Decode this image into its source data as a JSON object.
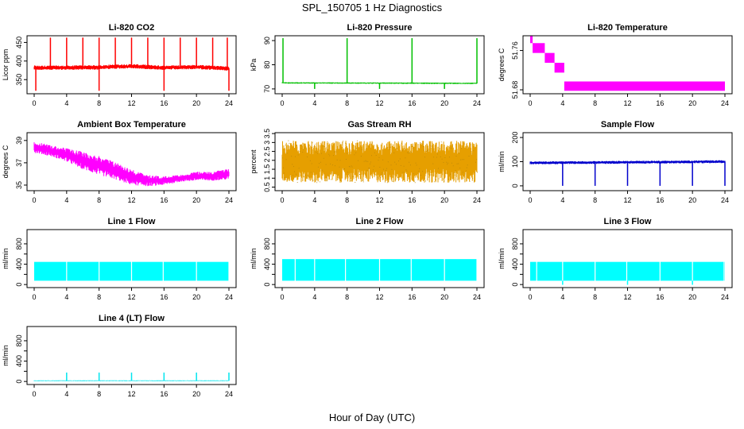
{
  "figure": {
    "title": "SPL_150705  1 Hz Diagnostics",
    "xlabel": "Hour of Day (UTC)"
  },
  "chart_data": [
    {
      "type": "line",
      "title": "Li-820 CO2",
      "ylabel": "Licor ppm",
      "color": "#ff0000",
      "xlim": [
        0,
        24
      ],
      "ylim": [
        312,
        468
      ],
      "xticks": [
        0,
        4,
        8,
        12,
        16,
        20,
        24
      ],
      "yticks": [
        350,
        400,
        450
      ],
      "ytick_labels": [
        "350",
        "400",
        "450"
      ],
      "baseline": [
        [
          0,
          382
        ],
        [
          4,
          382
        ],
        [
          8,
          383
        ],
        [
          10,
          385
        ],
        [
          12,
          386
        ],
        [
          14,
          384
        ],
        [
          16,
          382
        ],
        [
          20,
          384
        ],
        [
          24,
          380
        ]
      ],
      "band": 6,
      "spikes_up": [
        2.0,
        4.0,
        6.0,
        8.0,
        10.0,
        12.0,
        14.0,
        16.0,
        18.0,
        20.0,
        22.0,
        23.8
      ],
      "spikes_down": [
        0.2,
        8.0,
        16.0,
        24.0
      ],
      "spike_high": 463,
      "spike_low": 320
    },
    {
      "type": "line",
      "title": "Li-820 Pressure",
      "ylabel": "kPa",
      "color": "#00c000",
      "xlim": [
        0,
        24
      ],
      "ylim": [
        68,
        92
      ],
      "xticks": [
        0,
        4,
        8,
        12,
        16,
        20,
        24
      ],
      "yticks": [
        70,
        80,
        90
      ],
      "ytick_labels": [
        "70",
        "80",
        "90"
      ],
      "baseline": [
        [
          0,
          72.5
        ],
        [
          24,
          72.3
        ]
      ],
      "band": 0.3,
      "spikes_up": [
        0.1,
        8.0,
        16.0,
        24.0
      ],
      "spikes_down": [
        4.0,
        12.0,
        20.0
      ],
      "spike_high": 91,
      "spike_low": 70
    },
    {
      "type": "step",
      "title": "Li-820 Temperature",
      "ylabel": "degrees C",
      "color": "#ff00ff",
      "xlim": [
        0,
        24
      ],
      "ylim": [
        51.672,
        51.79
      ],
      "xticks": [
        0,
        4,
        8,
        12,
        16,
        20,
        24
      ],
      "yticks": [
        51.68,
        51.76
      ],
      "ytick_labels": [
        "51.68",
        "51.76"
      ],
      "steps": [
        {
          "x0": 0.0,
          "x1": 0.3,
          "lo": 51.775,
          "hi": 51.79
        },
        {
          "x0": 0.3,
          "x1": 1.8,
          "lo": 51.755,
          "hi": 51.775
        },
        {
          "x0": 1.8,
          "x1": 3.0,
          "lo": 51.735,
          "hi": 51.755
        },
        {
          "x0": 3.0,
          "x1": 4.2,
          "lo": 51.715,
          "hi": 51.735
        },
        {
          "x0": 4.2,
          "x1": 24.0,
          "lo": 51.678,
          "hi": 51.697
        }
      ]
    },
    {
      "type": "line",
      "title": "Ambient Box Temperature",
      "ylabel": "degrees C",
      "color": "#ff00ff",
      "xlim": [
        0,
        24
      ],
      "ylim": [
        34.5,
        39.7
      ],
      "xticks": [
        0,
        4,
        8,
        12,
        16,
        20,
        24
      ],
      "yticks": [
        35,
        37,
        39
      ],
      "ytick_labels": [
        "35",
        "37",
        "39"
      ],
      "lower": [
        [
          0,
          37.9
        ],
        [
          2,
          37.6
        ],
        [
          4,
          37.1
        ],
        [
          6,
          36.4
        ],
        [
          8,
          35.9
        ],
        [
          10,
          35.5
        ],
        [
          12,
          35.0
        ],
        [
          14,
          34.9
        ],
        [
          16,
          35.0
        ],
        [
          18,
          35.3
        ],
        [
          20,
          35.4
        ],
        [
          22,
          35.4
        ],
        [
          24,
          35.5
        ]
      ],
      "upper": [
        [
          0,
          38.9
        ],
        [
          2,
          38.6
        ],
        [
          4,
          38.3
        ],
        [
          6,
          38.0
        ],
        [
          8,
          37.6
        ],
        [
          10,
          37.1
        ],
        [
          12,
          36.4
        ],
        [
          14,
          35.9
        ],
        [
          16,
          35.8
        ],
        [
          18,
          35.9
        ],
        [
          20,
          36.2
        ],
        [
          22,
          36.2
        ],
        [
          24,
          36.5
        ]
      ]
    },
    {
      "type": "line",
      "title": "Gas Stream RH",
      "ylabel": "percent",
      "color": "#e69f00",
      "color2": "#b8860b",
      "xlim": [
        0,
        24
      ],
      "ylim": [
        0.3,
        3.55
      ],
      "xticks": [
        0,
        4,
        8,
        12,
        16,
        20,
        24
      ],
      "yticks": [
        0.5,
        1.0,
        1.5,
        2.0,
        2.5,
        3.0,
        3.5
      ],
      "ytick_labels": [
        "0.5",
        "1",
        "1.5",
        "2",
        "2.5",
        "3",
        "3.5"
      ],
      "lower": [
        [
          0,
          0.75
        ],
        [
          24,
          0.75
        ]
      ],
      "upper": [
        [
          0,
          3.1
        ],
        [
          24,
          3.1
        ]
      ]
    },
    {
      "type": "line",
      "title": "Sample Flow",
      "ylabel": "ml/min",
      "color": "#0000cc",
      "xlim": [
        0,
        24
      ],
      "ylim": [
        -20,
        220
      ],
      "xticks": [
        0,
        4,
        8,
        12,
        16,
        20,
        24
      ],
      "yticks": [
        0,
        100,
        200
      ],
      "ytick_labels": [
        "0",
        "100",
        "200"
      ],
      "baseline": [
        [
          0,
          95
        ],
        [
          24,
          100
        ]
      ],
      "band": 6,
      "spikes_down": [
        4.0,
        8.0,
        12.0,
        16.0,
        20.0,
        24.0
      ],
      "spike_low": 0
    },
    {
      "type": "area",
      "title": "Line 1 Flow",
      "ylabel": "ml/min",
      "color": "#00ffff",
      "xlim": [
        0,
        24
      ],
      "ylim": [
        -60,
        1080
      ],
      "xticks": [
        0,
        4,
        8,
        12,
        16,
        20,
        24
      ],
      "yticks": [
        0,
        200,
        400,
        600,
        800
      ],
      "ytick_labels": [
        "0",
        "",
        "400",
        "",
        "800"
      ],
      "band_lo": 75,
      "band_hi": 445,
      "gaps": [
        4.0,
        8.0,
        12.0,
        15.9,
        20.0,
        24.0
      ],
      "dips": []
    },
    {
      "type": "area",
      "title": "Line 2 Flow",
      "ylabel": "ml/min",
      "color": "#00ffff",
      "xlim": [
        0,
        24
      ],
      "ylim": [
        -60,
        1080
      ],
      "xticks": [
        0,
        4,
        8,
        12,
        16,
        20,
        24
      ],
      "yticks": [
        0,
        200,
        400,
        600,
        800
      ],
      "ytick_labels": [
        "0",
        "",
        "400",
        "",
        "800"
      ],
      "band_lo": 75,
      "band_hi": 500,
      "gaps": [
        1.6,
        4.0,
        7.8,
        12.0,
        15.9,
        20.0,
        24.0
      ],
      "dips": []
    },
    {
      "type": "area",
      "title": "Line 3 Flow",
      "ylabel": "ml/min",
      "color": "#00ffff",
      "xlim": [
        0,
        24
      ],
      "ylim": [
        -60,
        1080
      ],
      "xticks": [
        0,
        4,
        8,
        12,
        16,
        20,
        24
      ],
      "yticks": [
        0,
        200,
        400,
        600,
        800
      ],
      "ytick_labels": [
        "0",
        "",
        "400",
        "",
        "800"
      ],
      "band_lo": 75,
      "band_hi": 445,
      "gaps": [
        0.8,
        4.0,
        8.0,
        11.9,
        16.0,
        20.0,
        23.9
      ],
      "dips": [
        4.0,
        12.0,
        20.0
      ]
    },
    {
      "type": "line",
      "title": "Line 4 (LT) Flow",
      "ylabel": "ml/min",
      "color": "#00e5ee",
      "xlim": [
        0,
        24
      ],
      "ylim": [
        -60,
        1080
      ],
      "xticks": [
        0,
        4,
        8,
        12,
        16,
        20,
        24
      ],
      "yticks": [
        0,
        200,
        400,
        600,
        800
      ],
      "ytick_labels": [
        "0",
        "",
        "400",
        "",
        "800"
      ],
      "baseline": [
        [
          0,
          15
        ],
        [
          24,
          15
        ]
      ],
      "band": 8,
      "spikes_up": [
        4.0,
        8.0,
        12.0,
        16.0,
        20.0,
        24.0
      ],
      "spike_high": 175
    }
  ]
}
